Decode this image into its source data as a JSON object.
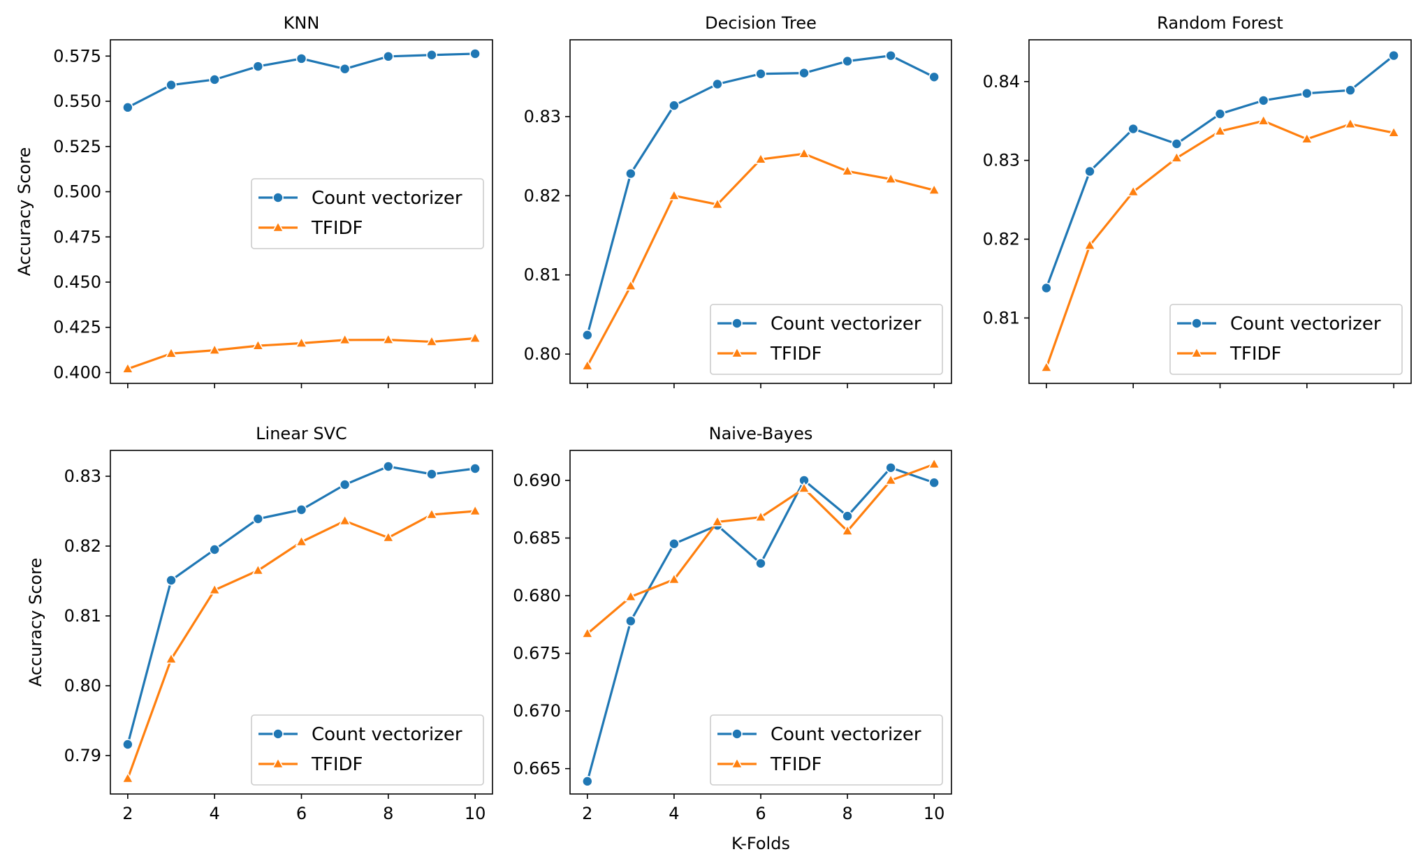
{
  "figure": {
    "xlabel": "K-Folds",
    "ylabel": "Accuracy Score"
  },
  "chart_data": [
    {
      "type": "line",
      "title": "KNN",
      "x": [
        2,
        3,
        4,
        5,
        6,
        7,
        8,
        9,
        10
      ],
      "xlim": [
        1.6,
        10.4
      ],
      "ylim": [
        0.394,
        0.584
      ],
      "yticks": [
        0.4,
        0.425,
        0.45,
        0.475,
        0.5,
        0.525,
        0.55,
        0.575
      ],
      "ytick_labels": [
        "0.400",
        "0.425",
        "0.450",
        "0.475",
        "0.500",
        "0.525",
        "0.550",
        "0.575"
      ],
      "ylabel": "Accuracy Score",
      "legend": "center right",
      "series": [
        {
          "name": "Count vectorizer",
          "color": "#1f77b4",
          "marker": "circle",
          "values": [
            0.5466,
            0.559,
            0.562,
            0.5693,
            0.5736,
            0.5679,
            0.5748,
            0.5756,
            0.5763
          ]
        },
        {
          "name": "TFIDF",
          "color": "#ff7f0e",
          "marker": "triangle",
          "values": [
            0.402,
            0.4105,
            0.4123,
            0.4148,
            0.4162,
            0.418,
            0.4181,
            0.417,
            0.4189
          ]
        }
      ]
    },
    {
      "type": "line",
      "title": "Decision Tree",
      "x": [
        2,
        3,
        4,
        5,
        6,
        7,
        8,
        9,
        10
      ],
      "xlim": [
        1.6,
        10.4
      ],
      "ylim": [
        0.7963,
        0.8397
      ],
      "yticks": [
        0.8,
        0.81,
        0.82,
        0.83
      ],
      "ytick_labels": [
        "0.80",
        "0.81",
        "0.82",
        "0.83"
      ],
      "legend": "lower right",
      "series": [
        {
          "name": "Count vectorizer",
          "color": "#1f77b4",
          "marker": "circle",
          "values": [
            0.8024,
            0.8228,
            0.8314,
            0.8341,
            0.8354,
            0.8355,
            0.837,
            0.8377,
            0.835
          ]
        },
        {
          "name": "TFIDF",
          "color": "#ff7f0e",
          "marker": "triangle",
          "values": [
            0.7985,
            0.8086,
            0.82,
            0.8189,
            0.8246,
            0.8253,
            0.8231,
            0.8221,
            0.8207
          ]
        }
      ]
    },
    {
      "type": "line",
      "title": "Random Forest",
      "x": [
        2,
        3,
        4,
        5,
        6,
        7,
        8,
        9,
        10
      ],
      "xlim": [
        1.6,
        10.4
      ],
      "ylim": [
        0.8017,
        0.8453
      ],
      "yticks": [
        0.81,
        0.82,
        0.83,
        0.84
      ],
      "ytick_labels": [
        "0.81",
        "0.82",
        "0.83",
        "0.84"
      ],
      "legend": "lower right",
      "series": [
        {
          "name": "Count vectorizer",
          "color": "#1f77b4",
          "marker": "circle",
          "values": [
            0.8138,
            0.8286,
            0.834,
            0.8321,
            0.8359,
            0.8376,
            0.8385,
            0.8389,
            0.8433
          ]
        },
        {
          "name": "TFIDF",
          "color": "#ff7f0e",
          "marker": "triangle",
          "values": [
            0.8037,
            0.8192,
            0.826,
            0.8303,
            0.8337,
            0.835,
            0.8327,
            0.8346,
            0.8335
          ]
        }
      ]
    },
    {
      "type": "line",
      "title": "Linear SVC",
      "x": [
        2,
        3,
        4,
        5,
        6,
        7,
        8,
        9,
        10
      ],
      "xlim": [
        1.6,
        10.4
      ],
      "ylim": [
        0.7845,
        0.8337
      ],
      "yticks": [
        0.79,
        0.8,
        0.81,
        0.82,
        0.83
      ],
      "ytick_labels": [
        "0.79",
        "0.80",
        "0.81",
        "0.82",
        "0.83"
      ],
      "xticks": [
        2,
        4,
        6,
        8,
        10
      ],
      "ylabel": "Accuracy Score",
      "legend": "lower right",
      "series": [
        {
          "name": "Count vectorizer",
          "color": "#1f77b4",
          "marker": "circle",
          "values": [
            0.7916,
            0.8151,
            0.8195,
            0.8239,
            0.8252,
            0.8288,
            0.8314,
            0.8303,
            0.8311
          ]
        },
        {
          "name": "TFIDF",
          "color": "#ff7f0e",
          "marker": "triangle",
          "values": [
            0.7867,
            0.8038,
            0.8137,
            0.8165,
            0.8206,
            0.8236,
            0.8212,
            0.8245,
            0.825
          ]
        }
      ]
    },
    {
      "type": "line",
      "title": "Naive-Bayes",
      "x": [
        2,
        3,
        4,
        5,
        6,
        7,
        8,
        9,
        10
      ],
      "xlim": [
        1.6,
        10.4
      ],
      "ylim": [
        0.6628,
        0.6926
      ],
      "yticks": [
        0.665,
        0.67,
        0.675,
        0.68,
        0.685,
        0.69
      ],
      "ytick_labels": [
        "0.665",
        "0.670",
        "0.675",
        "0.680",
        "0.685",
        "0.690"
      ],
      "xticks": [
        2,
        4,
        6,
        8,
        10
      ],
      "xlabel": "K-Folds",
      "legend": "lower right",
      "series": [
        {
          "name": "Count vectorizer",
          "color": "#1f77b4",
          "marker": "circle",
          "values": [
            0.6639,
            0.6778,
            0.6845,
            0.6861,
            0.6828,
            0.69,
            0.6869,
            0.6911,
            0.6898
          ]
        },
        {
          "name": "TFIDF",
          "color": "#ff7f0e",
          "marker": "triangle",
          "values": [
            0.6767,
            0.6799,
            0.6814,
            0.6864,
            0.6868,
            0.6893,
            0.6856,
            0.69,
            0.6914
          ]
        }
      ]
    }
  ]
}
